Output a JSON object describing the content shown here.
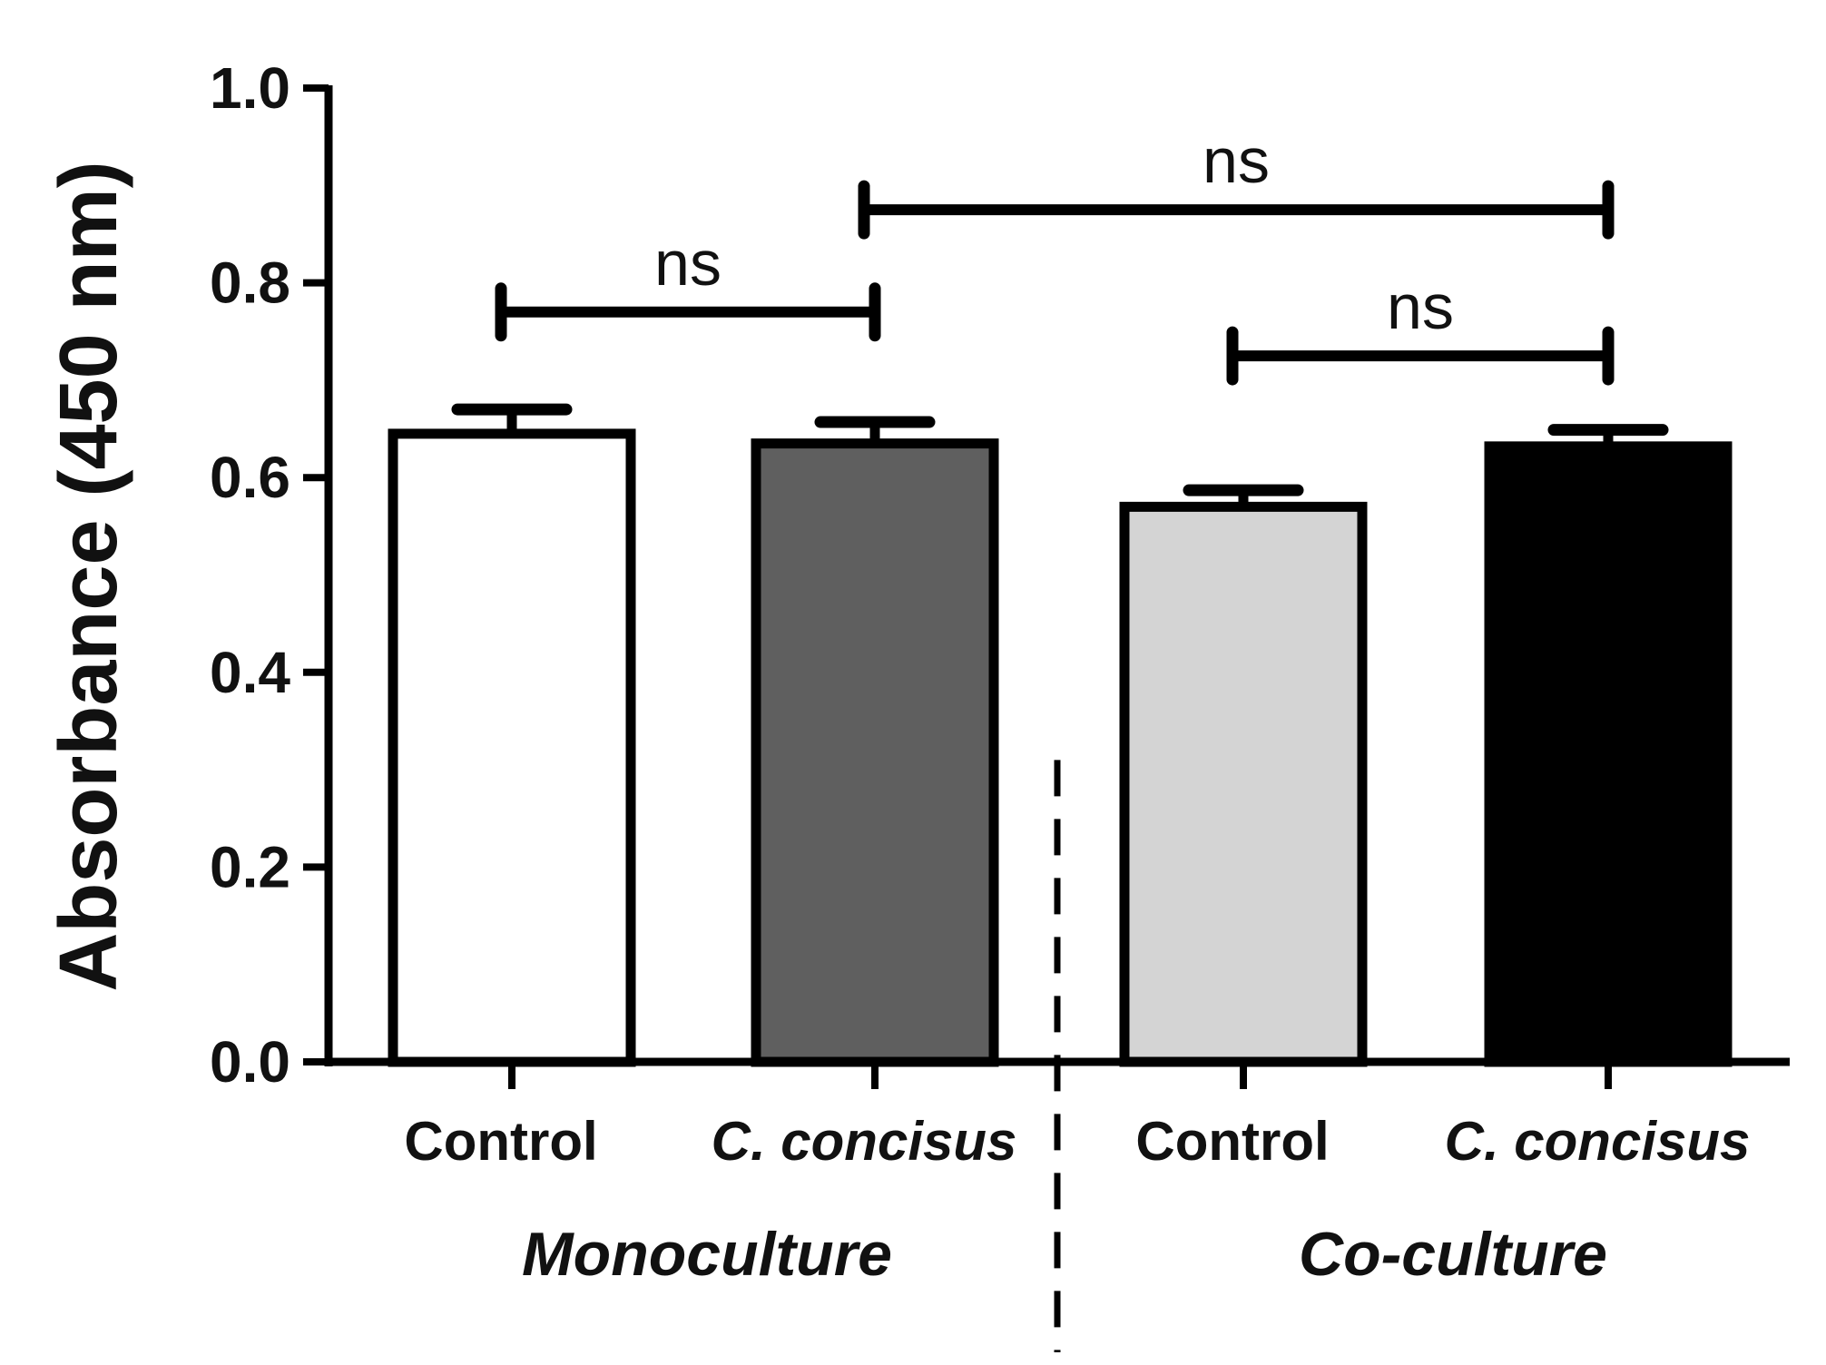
{
  "chart_data": {
    "type": "bar",
    "title": "",
    "xlabel": "",
    "ylabel": "Absorbance (450 nm)",
    "ylim": [
      0,
      1.0
    ],
    "yticks": [
      "0.0",
      "0.2",
      "0.4",
      "0.6",
      "0.8",
      "1.0"
    ],
    "categories": [
      "Control",
      "C. concisus",
      "Control",
      "C. concisus"
    ],
    "italic_categories": [
      false,
      true,
      false,
      true
    ],
    "groups": [
      {
        "name": "Monoculture",
        "category_indices": [
          0,
          1
        ]
      },
      {
        "name": "Co-culture",
        "category_indices": [
          2,
          3
        ]
      }
    ],
    "values": [
      0.645,
      0.635,
      0.57,
      0.632
    ],
    "errors": [
      0.025,
      0.022,
      0.017,
      0.017
    ],
    "bar_colors": [
      "#ffffff",
      "#5f5f5f",
      "#d4d4d4",
      "#000000"
    ],
    "significance": [
      {
        "from": 0,
        "to": 1,
        "label": "ns",
        "y": 0.77
      },
      {
        "from": 1,
        "to": 3,
        "label": "ns",
        "y": 0.875
      },
      {
        "from": 2,
        "to": 3,
        "label": "ns",
        "y": 0.725
      }
    ]
  }
}
